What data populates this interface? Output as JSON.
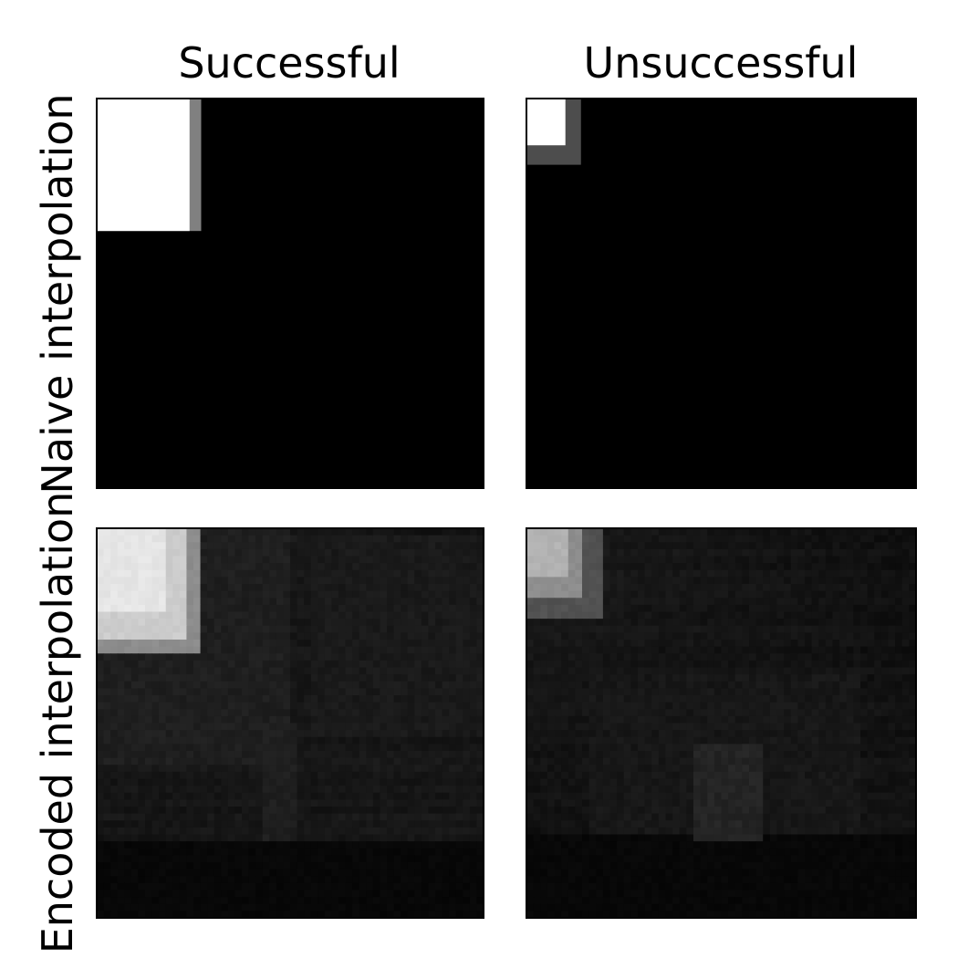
{
  "chart_data": {
    "type": "heatmap",
    "columns": [
      "Successful",
      "Unsuccessful"
    ],
    "rows": [
      "Naive interpolation",
      "Encoded interpolation"
    ],
    "colormap": "gray",
    "background_color": "#000000",
    "axes_ticks": false,
    "panels": [
      {
        "column": "Successful",
        "row": "Naive interpolation",
        "kind": "naive",
        "box": [
          0.24,
          0.34
        ],
        "halo": [
          0.27,
          0.34
        ],
        "core_level": 1.0,
        "halo_level": 0.5
      },
      {
        "column": "Unsuccessful",
        "row": "Naive interpolation",
        "kind": "naive",
        "box": [
          0.1,
          0.12
        ],
        "halo": [
          0.14,
          0.17
        ],
        "core_level": 1.0,
        "halo_level": 0.3
      },
      {
        "column": "Successful",
        "row": "Encoded interpolation",
        "kind": "encoded",
        "seed": 11,
        "base_levels": [
          0.08,
          0.06,
          0.04
        ],
        "bottom_band": [
          0.8,
          1.0,
          0.03
        ],
        "blocks": [
          [
            0.0,
            0.0,
            0.27,
            0.33,
            0.55
          ],
          [
            0.0,
            0.0,
            0.23,
            0.28,
            0.8
          ],
          [
            0.0,
            0.0,
            0.18,
            0.22,
            0.9
          ],
          [
            0.0,
            0.0,
            0.13,
            0.16,
            0.75
          ],
          [
            0.0,
            0.0,
            0.5,
            0.6,
            0.12
          ],
          [
            0.56,
            0.02,
            1.0,
            0.53,
            0.1
          ],
          [
            0.42,
            0.5,
            0.52,
            0.8,
            0.12
          ],
          [
            0.0,
            0.33,
            0.2,
            0.6,
            0.06
          ]
        ]
      },
      {
        "column": "Unsuccessful",
        "row": "Encoded interpolation",
        "kind": "encoded",
        "seed": 23,
        "base_levels": [
          0.07,
          0.05,
          0.035
        ],
        "bottom_band": [
          0.78,
          1.0,
          0.03
        ],
        "blocks": [
          [
            0.0,
            0.0,
            0.19,
            0.23,
            0.32
          ],
          [
            0.0,
            0.0,
            0.14,
            0.17,
            0.55
          ],
          [
            0.0,
            0.0,
            0.1,
            0.12,
            0.7
          ],
          [
            0.16,
            0.38,
            0.86,
            0.78,
            0.09
          ],
          [
            0.43,
            0.55,
            0.6,
            0.8,
            0.14
          ],
          [
            0.0,
            0.25,
            0.3,
            0.55,
            0.06
          ]
        ]
      }
    ]
  }
}
